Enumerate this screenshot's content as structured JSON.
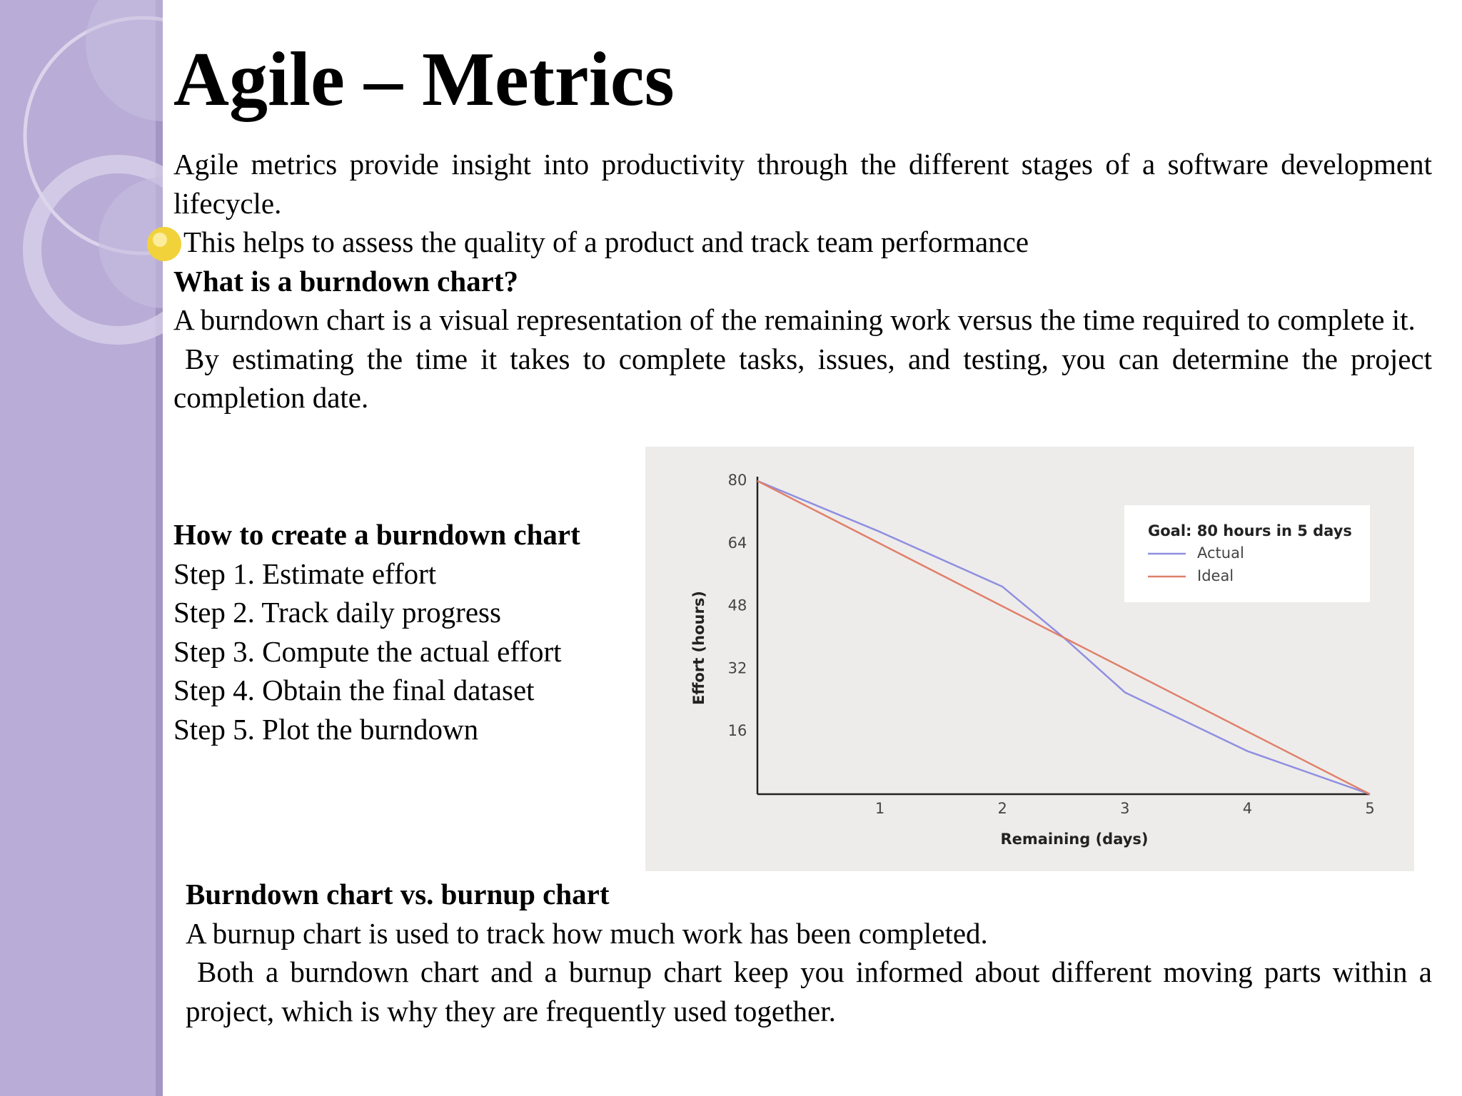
{
  "title": "Agile – Metrics",
  "intro": [
    "Agile metrics provide insight into productivity through the different stages of a software development lifecycle.",
    "This helps to assess the quality of a product and track team performance"
  ],
  "heading1": "What is a burndown chart?",
  "burndown": [
    "A burndown chart is a visual representation of the remaining work versus the time required to complete it.",
    "By estimating the time it takes to complete tasks, issues, and testing, you can determine the project completion date."
  ],
  "heading2": "How to create a burndown chart",
  "steps": [
    "Step 1. Estimate effort",
    "Step 2. Track daily progress",
    "Step 3. Compute the actual effort",
    "Step 4. Obtain the final dataset",
    "Step 5. Plot the burndown"
  ],
  "heading3": "Burndown chart vs. burnup chart",
  "burnup": [
    "A burnup chart is used to track how much work has been completed.",
    "Both a burndown chart and a burnup chart keep you informed about different moving parts within a project, which is why they are frequently used together."
  ],
  "chart_data": {
    "type": "line",
    "x": [
      0,
      1,
      2,
      2.5,
      3,
      4,
      5
    ],
    "series": [
      {
        "name": "Actual",
        "color": "#8f8fe0",
        "values": [
          80,
          67,
          53,
          40,
          26,
          11,
          0
        ]
      },
      {
        "name": "Ideal",
        "color": "#e0806a",
        "values": [
          80,
          64,
          48,
          40,
          32,
          16,
          0
        ]
      }
    ],
    "legend_title": "Goal: 80 hours in 5 days",
    "legend": "upper right",
    "xlabel": "Remaining (days)",
    "ylabel": "Effort (hours)",
    "xlim": [
      0,
      5
    ],
    "xticks": [
      1,
      2,
      3,
      4,
      5
    ],
    "ylim": [
      0,
      80
    ],
    "yticks": [
      16,
      32,
      48,
      64,
      80
    ],
    "grid": false
  }
}
